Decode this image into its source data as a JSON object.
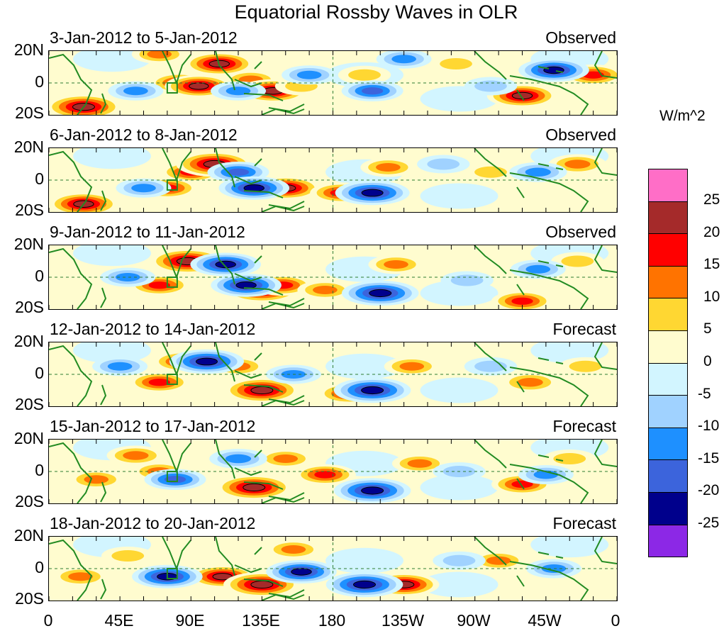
{
  "chart_data": {
    "type": "heatmap",
    "title": "Equatorial Rossby Waves in OLR",
    "units": "W/m^2",
    "lat_ticks": [
      "20N",
      "0",
      "20S"
    ],
    "lon_ticks": [
      "0",
      "45E",
      "90E",
      "135E",
      "180",
      "135W",
      "90W",
      "45W",
      "0"
    ],
    "lon_range_deg": [
      0,
      360
    ],
    "lat_range_deg": [
      -20,
      20
    ],
    "panels": [
      {
        "dates": "3-Jan-2012 to 5-Jan-2012",
        "status": "Observed",
        "anomalies": [
          {
            "lon": 22,
            "lat": -15,
            "value": 27
          },
          {
            "lon": 70,
            "lat": 18,
            "value": 10
          },
          {
            "lon": 83,
            "lat": 0,
            "value": 15
          },
          {
            "lon": 95,
            "lat": -2,
            "value": 20
          },
          {
            "lon": 108,
            "lat": 12,
            "value": 22
          },
          {
            "lon": 128,
            "lat": 2,
            "value": 10
          },
          {
            "lon": 142,
            "lat": -5,
            "value": 22
          },
          {
            "lon": 160,
            "lat": -2,
            "value": 8
          },
          {
            "lon": 200,
            "lat": 5,
            "value": 8
          },
          {
            "lon": 258,
            "lat": 12,
            "value": 8
          },
          {
            "lon": 300,
            "lat": -8,
            "value": 22
          },
          {
            "lon": 345,
            "lat": 5,
            "value": 15
          },
          {
            "lon": 55,
            "lat": -5,
            "value": -10
          },
          {
            "lon": 120,
            "lat": -5,
            "value": -10
          },
          {
            "lon": 165,
            "lat": 5,
            "value": -10
          },
          {
            "lon": 205,
            "lat": -5,
            "value": -15
          },
          {
            "lon": 225,
            "lat": 15,
            "value": -10
          },
          {
            "lon": 320,
            "lat": 8,
            "value": -22
          },
          {
            "lon": 280,
            "lat": -2,
            "value": -8
          }
        ]
      },
      {
        "dates": "6-Jan-2012 to 8-Jan-2012",
        "status": "Observed",
        "anomalies": [
          {
            "lon": 22,
            "lat": -15,
            "value": 22
          },
          {
            "lon": 90,
            "lat": 5,
            "value": 15
          },
          {
            "lon": 105,
            "lat": 10,
            "value": 27
          },
          {
            "lon": 75,
            "lat": -5,
            "value": 15
          },
          {
            "lon": 150,
            "lat": -5,
            "value": 22
          },
          {
            "lon": 185,
            "lat": -8,
            "value": 15
          },
          {
            "lon": 215,
            "lat": 8,
            "value": 10
          },
          {
            "lon": 280,
            "lat": 5,
            "value": 8
          },
          {
            "lon": 335,
            "lat": 10,
            "value": 12
          },
          {
            "lon": 120,
            "lat": 5,
            "value": -15
          },
          {
            "lon": 130,
            "lat": -5,
            "value": -22
          },
          {
            "lon": 205,
            "lat": -8,
            "value": -25
          },
          {
            "lon": 60,
            "lat": -5,
            "value": -10
          },
          {
            "lon": 250,
            "lat": 10,
            "value": -8
          },
          {
            "lon": 310,
            "lat": 5,
            "value": -12
          }
        ]
      },
      {
        "dates": "9-Jan-2012 to 11-Jan-2012",
        "status": "Observed",
        "anomalies": [
          {
            "lon": 88,
            "lat": 10,
            "value": 27
          },
          {
            "lon": 70,
            "lat": -5,
            "value": 15
          },
          {
            "lon": 135,
            "lat": -8,
            "value": 27
          },
          {
            "lon": 148,
            "lat": -5,
            "value": 15
          },
          {
            "lon": 175,
            "lat": -8,
            "value": 10
          },
          {
            "lon": 220,
            "lat": 8,
            "value": 10
          },
          {
            "lon": 300,
            "lat": -15,
            "value": 15
          },
          {
            "lon": 335,
            "lat": 10,
            "value": 8
          },
          {
            "lon": 112,
            "lat": 8,
            "value": -22
          },
          {
            "lon": 125,
            "lat": -5,
            "value": -22
          },
          {
            "lon": 210,
            "lat": -10,
            "value": -27
          },
          {
            "lon": 50,
            "lat": 0,
            "value": -10
          },
          {
            "lon": 265,
            "lat": -2,
            "value": -8
          },
          {
            "lon": 310,
            "lat": 5,
            "value": -10
          }
        ]
      },
      {
        "dates": "12-Jan-2012 to 14-Jan-2012",
        "status": "Forecast",
        "anomalies": [
          {
            "lon": 85,
            "lat": 8,
            "value": 15
          },
          {
            "lon": 70,
            "lat": -5,
            "value": 15
          },
          {
            "lon": 135,
            "lat": -10,
            "value": 27
          },
          {
            "lon": 120,
            "lat": 5,
            "value": 10
          },
          {
            "lon": 190,
            "lat": -12,
            "value": 15
          },
          {
            "lon": 230,
            "lat": 5,
            "value": 10
          },
          {
            "lon": 305,
            "lat": -5,
            "value": 12
          },
          {
            "lon": 340,
            "lat": 5,
            "value": 8
          },
          {
            "lon": 100,
            "lat": 8,
            "value": -25
          },
          {
            "lon": 205,
            "lat": -10,
            "value": -27
          },
          {
            "lon": 155,
            "lat": 0,
            "value": -10
          },
          {
            "lon": 45,
            "lat": 5,
            "value": -10
          },
          {
            "lon": 280,
            "lat": 5,
            "value": -8
          }
        ]
      },
      {
        "dates": "15-Jan-2012 to 17-Jan-2012",
        "status": "Forecast",
        "anomalies": [
          {
            "lon": 55,
            "lat": 10,
            "value": 12
          },
          {
            "lon": 70,
            "lat": 0,
            "value": 10
          },
          {
            "lon": 130,
            "lat": -10,
            "value": 27
          },
          {
            "lon": 150,
            "lat": 8,
            "value": 10
          },
          {
            "lon": 175,
            "lat": -2,
            "value": 15
          },
          {
            "lon": 235,
            "lat": 5,
            "value": 10
          },
          {
            "lon": 300,
            "lat": -8,
            "value": 15
          },
          {
            "lon": 330,
            "lat": 8,
            "value": 8
          },
          {
            "lon": 30,
            "lat": -5,
            "value": 10
          },
          {
            "lon": 80,
            "lat": -5,
            "value": -15
          },
          {
            "lon": 120,
            "lat": 8,
            "value": -12
          },
          {
            "lon": 205,
            "lat": -12,
            "value": -27
          },
          {
            "lon": 260,
            "lat": 0,
            "value": -8
          },
          {
            "lon": 315,
            "lat": -2,
            "value": -10
          }
        ]
      },
      {
        "dates": "18-Jan-2012 to 20-Jan-2012",
        "status": "Forecast",
        "anomalies": [
          {
            "lon": 20,
            "lat": -5,
            "value": 10
          },
          {
            "lon": 110,
            "lat": -5,
            "value": 20
          },
          {
            "lon": 135,
            "lat": -10,
            "value": 27
          },
          {
            "lon": 155,
            "lat": 12,
            "value": 10
          },
          {
            "lon": 225,
            "lat": -10,
            "value": 22
          },
          {
            "lon": 285,
            "lat": 5,
            "value": 10
          },
          {
            "lon": 50,
            "lat": 8,
            "value": 8
          },
          {
            "lon": 75,
            "lat": -5,
            "value": -22
          },
          {
            "lon": 160,
            "lat": -2,
            "value": -22
          },
          {
            "lon": 200,
            "lat": -10,
            "value": -27
          },
          {
            "lon": 260,
            "lat": 5,
            "value": -8
          },
          {
            "lon": 320,
            "lat": 0,
            "value": -10
          }
        ]
      }
    ],
    "legend": {
      "labels": [
        "25",
        "20",
        "15",
        "10",
        "5",
        "0",
        "-5",
        "-10",
        "-15",
        "-20",
        "-25"
      ],
      "colors": [
        "#ff6ec7",
        "#a52a2a",
        "#ff0000",
        "#ff7300",
        "#ffd732",
        "#fffccf",
        "#d2f5ff",
        "#a0d2ff",
        "#1e90ff",
        "#3c64dc",
        "#00008c",
        "#8c28e6"
      ]
    },
    "land_color": "#228b22"
  }
}
